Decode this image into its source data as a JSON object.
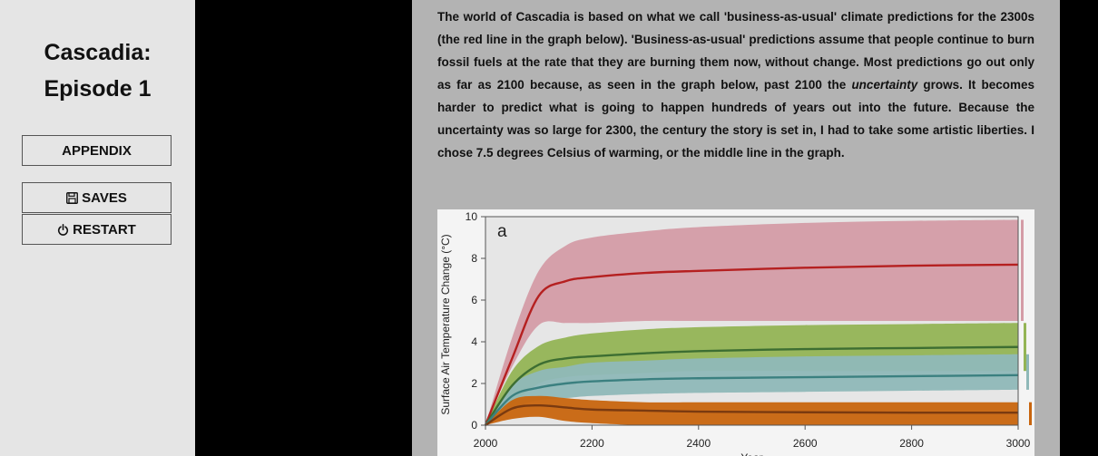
{
  "sidebar": {
    "title_line1": "Cascadia:",
    "title_line2": "Episode 1",
    "appendix_label": "APPENDIX",
    "saves_label": "SAVES",
    "restart_label": "RESTART"
  },
  "passage": {
    "part1": "The world of Cascadia is based on what we call 'business-as-usual' climate predictions for the 2300s (the red line in the graph below). 'Business-as-usual' predictions assume that people continue to burn fossil fuels at the rate that they are burning them now, without change. Most predictions go out only as far as 2100 because, as seen in the graph below, past 2100 the ",
    "emphasis": "uncertainty",
    "part2": " grows. It becomes harder to predict what is going to happen hundreds of years out into the future. Because the uncertainty was so large for 2300, the century the story is set in, I had to take some artistic liberties. I chose 7.5 degrees Celsius of warming, or the middle line in the graph."
  },
  "chart_data": {
    "type": "area",
    "panel_label": "a",
    "ylabel": "Surface Air Temperature Change (°C)",
    "xlabel": "Year",
    "xlim": [
      2000,
      3000
    ],
    "ylim": [
      0,
      10
    ],
    "xticks": [
      2000,
      2200,
      2400,
      2600,
      2800,
      3000
    ],
    "yticks": [
      0,
      2,
      4,
      6,
      8,
      10
    ],
    "x": [
      2000,
      2050,
      2100,
      2150,
      2200,
      2300,
      2400,
      2600,
      2800,
      3000
    ],
    "series": [
      {
        "color": "#b52020",
        "band_color": "#d49ca6",
        "mean": [
          0,
          3.2,
          6.2,
          6.9,
          7.1,
          7.3,
          7.4,
          7.55,
          7.65,
          7.7
        ],
        "lower": [
          0,
          2.8,
          4.8,
          4.9,
          4.9,
          5.0,
          5.0,
          5.0,
          5.0,
          5.0
        ],
        "upper": [
          0,
          4.2,
          7.4,
          8.6,
          9.0,
          9.3,
          9.5,
          9.7,
          9.8,
          9.85
        ]
      },
      {
        "color": "#3d6e32",
        "band_color": "#93b455",
        "mean": [
          0,
          1.9,
          2.9,
          3.2,
          3.3,
          3.45,
          3.55,
          3.65,
          3.7,
          3.75
        ],
        "lower": [
          0,
          1.0,
          2.0,
          2.3,
          2.4,
          2.5,
          2.6,
          2.6,
          2.6,
          2.6
        ],
        "upper": [
          0,
          2.6,
          3.8,
          4.2,
          4.4,
          4.6,
          4.7,
          4.8,
          4.85,
          4.9
        ]
      },
      {
        "color": "#3b8080",
        "band_color": "#8fb8b8",
        "mean": [
          0,
          1.4,
          1.8,
          2.0,
          2.1,
          2.2,
          2.25,
          2.3,
          2.35,
          2.4
        ],
        "lower": [
          0,
          0.8,
          1.2,
          1.3,
          1.4,
          1.5,
          1.55,
          1.6,
          1.65,
          1.7
        ],
        "upper": [
          0,
          1.9,
          2.6,
          2.8,
          3.0,
          3.1,
          3.2,
          3.3,
          3.35,
          3.4
        ]
      },
      {
        "color": "#7a3a10",
        "band_color": "#c8650e",
        "mean": [
          0,
          0.8,
          0.95,
          0.85,
          0.75,
          0.7,
          0.65,
          0.62,
          0.6,
          0.6
        ],
        "lower": [
          0,
          0.3,
          0.4,
          0.2,
          0.1,
          0.0,
          0.0,
          0.0,
          0.0,
          0.0
        ],
        "upper": [
          0,
          1.2,
          1.4,
          1.3,
          1.2,
          1.1,
          1.1,
          1.1,
          1.1,
          1.1
        ]
      }
    ]
  }
}
